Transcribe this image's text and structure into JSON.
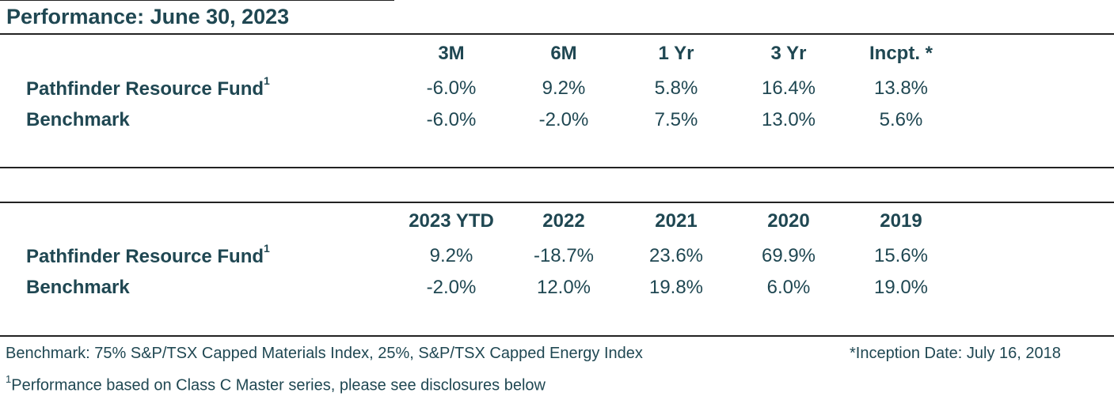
{
  "title": "Performance: June 30, 2023",
  "table1": {
    "headers": [
      "3M",
      "6M",
      "1 Yr",
      "3 Yr",
      "Incpt. *"
    ],
    "rows": [
      {
        "label": "Pathfinder Resource Fund",
        "sup": "1",
        "values": [
          "-6.0%",
          "9.2%",
          "5.8%",
          "16.4%",
          "13.8%"
        ]
      },
      {
        "label": "Benchmark",
        "sup": "",
        "values": [
          "-6.0%",
          "-2.0%",
          "7.5%",
          "13.0%",
          "5.6%"
        ]
      }
    ]
  },
  "table2": {
    "headers": [
      "2023 YTD",
      "2022",
      "2021",
      "2020",
      "2019"
    ],
    "rows": [
      {
        "label": "Pathfinder Resource Fund",
        "sup": "1",
        "values": [
          "9.2%",
          "-18.7%",
          "23.6%",
          "69.9%",
          "15.6%"
        ]
      },
      {
        "label": "Benchmark",
        "sup": "",
        "values": [
          "-2.0%",
          "12.0%",
          "19.8%",
          "6.0%",
          "19.0%"
        ]
      }
    ]
  },
  "footer": {
    "benchmark_note": "Benchmark: 75% S&P/TSX Capped Materials Index, 25%, S&P/TSX Capped Energy Index",
    "inception_note": "*Inception Date: July 16, 2018",
    "footnote_marker": "1",
    "footnote_text": "Performance based on Class C Master series, please see disclosures below"
  }
}
